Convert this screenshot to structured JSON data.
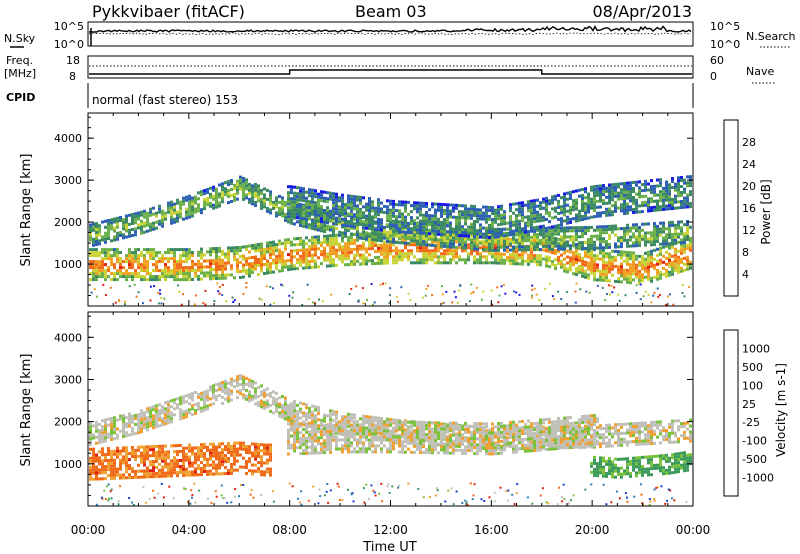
{
  "header": {
    "title": "Pykkvibaer (fitACF)",
    "beam": "Beam 03",
    "date": "08/Apr/2013"
  },
  "summary": {
    "nsky_label": "N.Sky",
    "nsearch_label": "N.Search",
    "freq_label_1": "Freq.",
    "freq_label_2": "[MHz]",
    "nave_label": "Nave",
    "cpid_label": "CPID",
    "cpid_text": "normal (fast stereo) 153",
    "noise_left_ticks": [
      "10^5",
      "10^0"
    ],
    "noise_right_ticks": [
      "10^5",
      "10^0"
    ],
    "freq_left_ticks": [
      "18",
      "8"
    ],
    "freq_right_ticks": [
      "60",
      "0"
    ]
  },
  "x_axis": {
    "label": "Time UT",
    "ticks": [
      "00:00",
      "04:00",
      "08:00",
      "12:00",
      "16:00",
      "20:00",
      "00:00"
    ]
  },
  "chart_data": [
    {
      "type": "heatmap",
      "name": "power",
      "ylabel": "Slant Range [km]",
      "yticks": [
        "1000",
        "2000",
        "3000",
        "4000"
      ],
      "ylim": [
        0,
        4600
      ],
      "xlim": [
        0,
        24
      ],
      "colorbar_label": "Power [dB]",
      "colorbar_ticks": [
        "4",
        "8",
        "12",
        "16",
        "20",
        "24",
        "28"
      ],
      "colorbar_range": [
        0,
        32
      ],
      "colors": [
        "#1a1ae6",
        "#2d5fb4",
        "#3c8a64",
        "#6cb04a",
        "#c9d335",
        "#f0a020",
        "#f06a1a",
        "#e02010"
      ],
      "bands": [
        {
          "t": [
            0,
            4,
            6,
            8,
            10,
            12,
            16,
            18,
            20,
            22,
            24
          ],
          "r": [
            1000,
            1000,
            1050,
            1250,
            1350,
            1400,
            1400,
            1350,
            1000,
            900,
            1300
          ],
          "w": 380,
          "level": 0.85
        },
        {
          "t": [
            0,
            2,
            4,
            6,
            8,
            10,
            12,
            16,
            20,
            24
          ],
          "r": [
            1700,
            2000,
            2400,
            2850,
            2250,
            1950,
            1800,
            1600,
            1650,
            1800
          ],
          "w": 260,
          "level": 0.5
        },
        {
          "t": [
            8,
            10,
            12,
            16,
            18,
            20,
            24
          ],
          "r": [
            2500,
            2300,
            2150,
            2000,
            2200,
            2500,
            2750
          ],
          "w": 380,
          "level": 0.35
        }
      ]
    },
    {
      "type": "heatmap",
      "name": "velocity",
      "ylabel": "Slant Range [km]",
      "yticks": [
        "1000",
        "2000",
        "3000",
        "4000"
      ],
      "ylim": [
        0,
        4600
      ],
      "xlim": [
        0,
        24
      ],
      "colorbar_label": "Velocity [m s-1]",
      "colorbar_ticks": [
        "1000",
        "500",
        "100",
        "25",
        "-25",
        "-100",
        "-500",
        "-1000"
      ],
      "colors": [
        "#1a3ec8",
        "#2d7db4",
        "#3c9a5a",
        "#7ac23a",
        "#c0c0b8",
        "#f0a030",
        "#f06a1a",
        "#e02010"
      ],
      "bands": [
        {
          "t": [
            0,
            2,
            4,
            6,
            7
          ],
          "r": [
            1000,
            1050,
            1100,
            1150,
            1100
          ],
          "w": 380,
          "level": 5.8
        },
        {
          "t": [
            0,
            2,
            4,
            6,
            8,
            10,
            12,
            16,
            20,
            24
          ],
          "r": [
            1700,
            2000,
            2400,
            2850,
            2250,
            1950,
            1800,
            1600,
            1650,
            1800
          ],
          "w": 280,
          "level": 4
        },
        {
          "t": [
            8,
            10,
            12,
            16,
            18,
            20
          ],
          "r": [
            1600,
            1650,
            1650,
            1600,
            1700,
            1800
          ],
          "w": 380,
          "level": 4
        },
        {
          "t": [
            20,
            21,
            22,
            23,
            24
          ],
          "r": [
            950,
            900,
            950,
            1000,
            1100
          ],
          "w": 240,
          "level": 2.3
        }
      ]
    }
  ]
}
